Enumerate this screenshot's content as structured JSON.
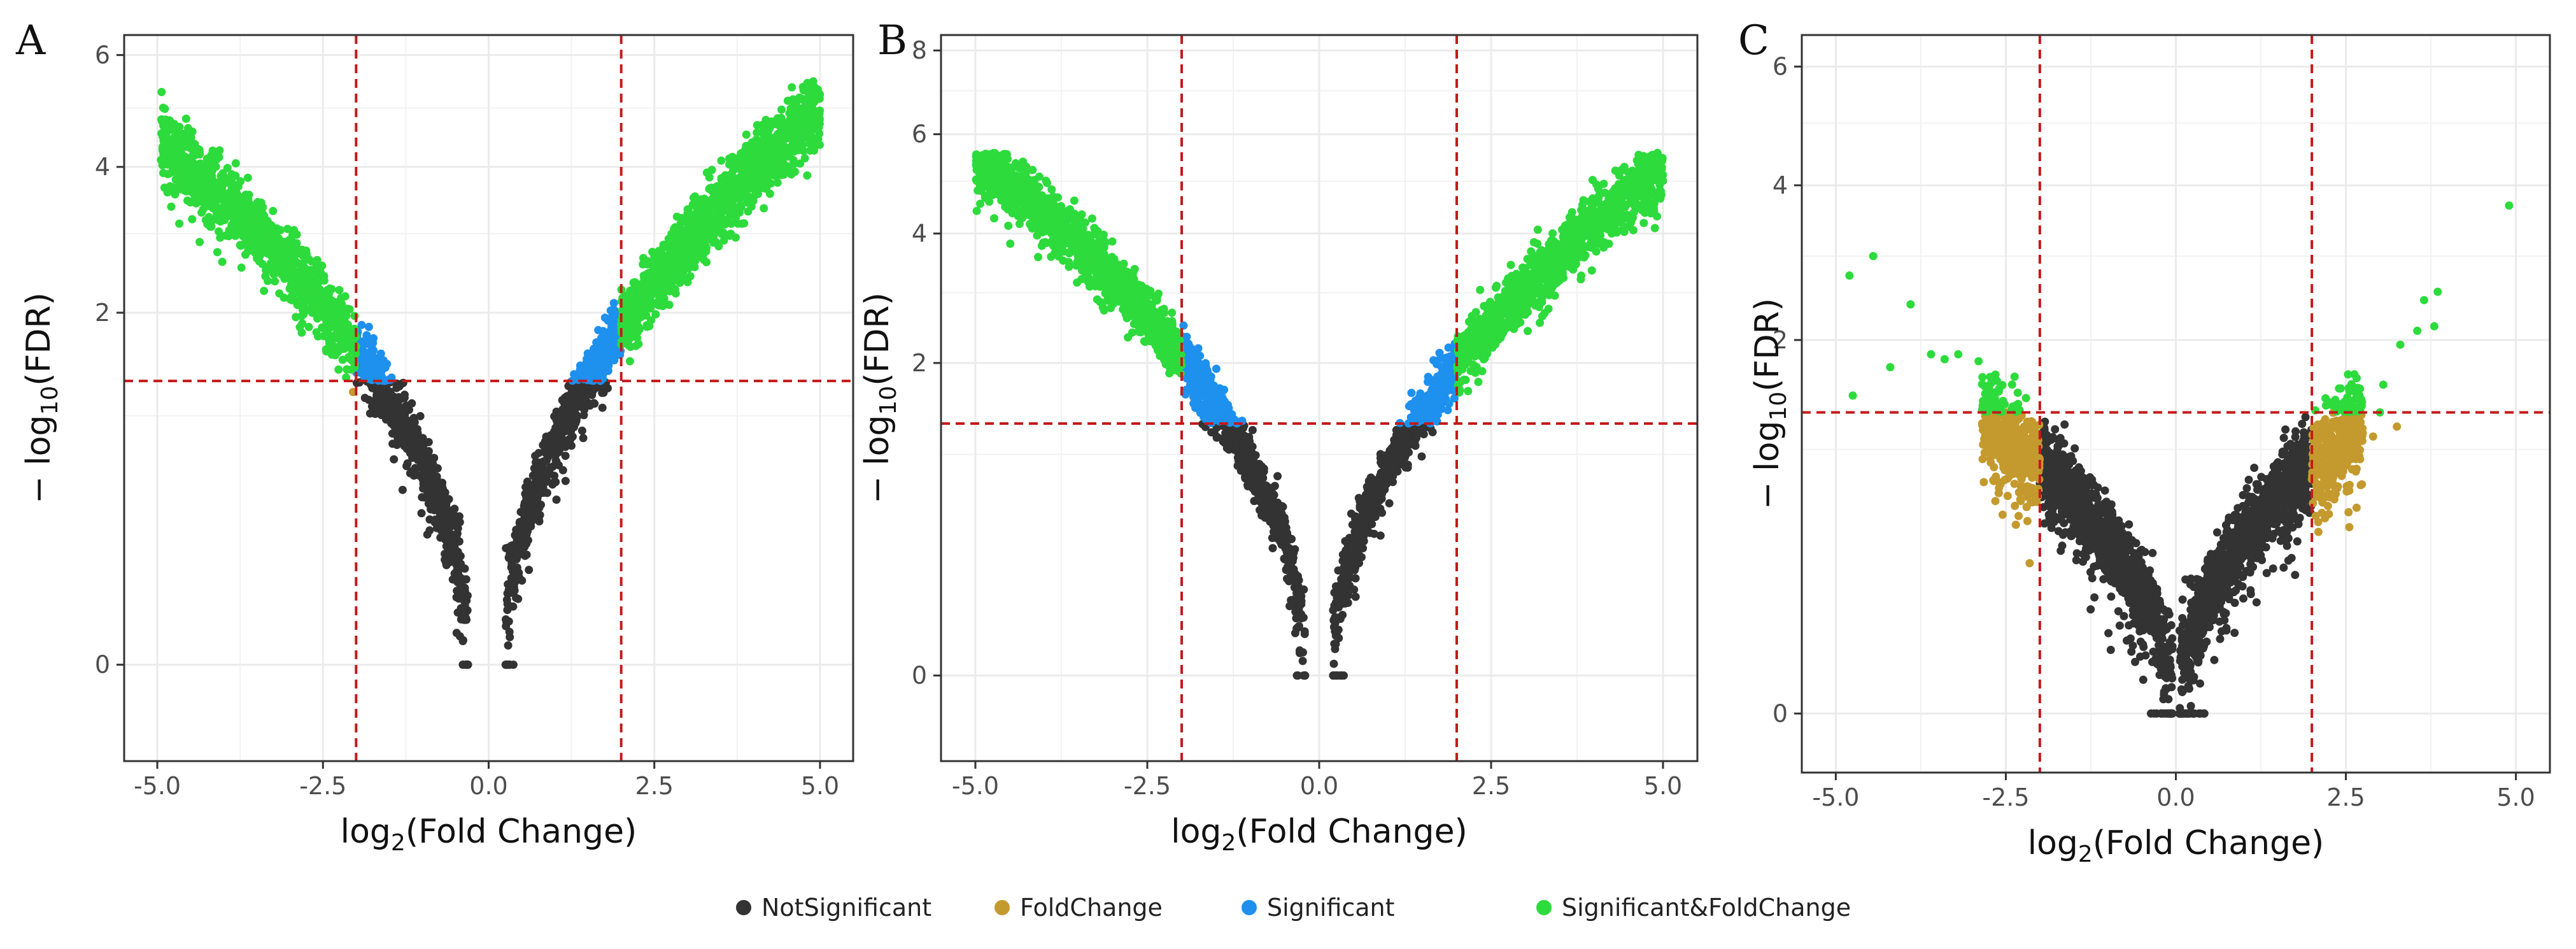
{
  "figure": {
    "legend": {
      "position": "bottom-center",
      "entries": [
        {
          "label": "NotSignificant",
          "color": "#333333"
        },
        {
          "label": "FoldChange",
          "color": "#C49A2E"
        },
        {
          "label": "Significant",
          "color": "#1E90EE"
        },
        {
          "label": "Significant&FoldChange",
          "color": "#2DDB3C"
        }
      ]
    },
    "colors": {
      "NotSignificant": "#333333",
      "FoldChange": "#C49A2E",
      "Significant": "#1E90EE",
      "Significant&FoldChange": "#2DDB3C",
      "threshold_line": "#C41A1A",
      "panel_background": "#FFFFFF",
      "grid": "#EBEBEB",
      "frame": "#333333"
    }
  },
  "chart_data": [
    {
      "panel": "A",
      "type": "scatter",
      "title": "",
      "xlabel": "log2(Fold Change)",
      "ylabel": "-log10(FDR)",
      "xlim": [
        -5.5,
        5.5
      ],
      "ylim": [
        -0.15,
        6.4
      ],
      "y_scale": "sqrt",
      "xticks": [
        -5.0,
        -2.5,
        0.0,
        2.5,
        5.0
      ],
      "xtick_labels": [
        "-5.0",
        "-2.5",
        "0.0",
        "2.5",
        "5.0"
      ],
      "yticks": [
        0,
        2,
        4,
        6
      ],
      "ytick_labels": [
        "0",
        "2",
        "4",
        "6"
      ],
      "thresholds": {
        "logfc_left": -2,
        "logfc_right": 2,
        "fdr": 1.3
      },
      "grid": true,
      "cloud": {
        "spread_left": 1.45,
        "slope_left": 0.95,
        "range_left": [
          0.3,
          4.95
        ],
        "spread_right": 1.55,
        "slope_right": 1.05,
        "range_right": [
          0.25,
          5.0
        ],
        "y_cap": 5.5,
        "n_left": 1700,
        "n_right": 1900
      }
    },
    {
      "panel": "B",
      "type": "scatter",
      "title": "",
      "xlabel": "log2(Fold Change)",
      "ylabel": "-log10(FDR)",
      "xlim": [
        -5.5,
        5.5
      ],
      "ylim": [
        -0.15,
        8.4
      ],
      "y_scale": "sqrt",
      "xticks": [
        -5.0,
        -2.5,
        0.0,
        2.5,
        5.0
      ],
      "xtick_labels": [
        "-5.0",
        "-2.5",
        "0.0",
        "2.5",
        "5.0"
      ],
      "yticks": [
        0,
        2,
        4,
        6,
        8
      ],
      "ytick_labels": [
        "0",
        "2",
        "4",
        "6",
        "8"
      ],
      "thresholds": {
        "logfc_left": -2,
        "logfc_right": 2,
        "fdr": 1.3
      },
      "grid": true,
      "cloud": {
        "spread_left": 1.6,
        "slope_left": 1.15,
        "range_left": [
          0.2,
          5.0
        ],
        "spread_right": 1.5,
        "slope_right": 1.1,
        "range_right": [
          0.2,
          5.0
        ],
        "y_cap": 5.6,
        "n_left": 1900,
        "n_right": 1900
      }
    },
    {
      "panel": "C",
      "type": "scatter",
      "title": "",
      "xlabel": "log2(Fold Change)",
      "ylabel": "-log10(FDR)",
      "xlim": [
        -5.5,
        5.5
      ],
      "ylim": [
        -0.05,
        6.6
      ],
      "y_scale": "sqrt",
      "xticks": [
        -5.0,
        -2.5,
        0.0,
        2.5,
        5.0
      ],
      "xtick_labels": [
        "-5.0",
        "-2.5",
        "0.0",
        "2.5",
        "5.0"
      ],
      "yticks": [
        0,
        2,
        4,
        6
      ],
      "ytick_labels": [
        "0",
        "2",
        "4",
        "6"
      ],
      "thresholds": {
        "logfc_left": -2,
        "logfc_right": 2,
        "fdr": 1.3
      },
      "grid": true,
      "cloud": {
        "spread_left": 0.55,
        "slope_left": 0.45,
        "range_left": [
          0.05,
          2.85
        ],
        "spread_right": 0.55,
        "slope_right": 0.45,
        "range_right": [
          0.05,
          2.75
        ],
        "y_cap": 1.7,
        "n_left": 1500,
        "n_right": 1500
      },
      "extra_points": [
        {
          "x": -4.8,
          "y": 2.75
        },
        {
          "x": -4.45,
          "y": 3.0
        },
        {
          "x": -3.9,
          "y": 2.4
        },
        {
          "x": -3.6,
          "y": 1.85
        },
        {
          "x": -3.4,
          "y": 1.8
        },
        {
          "x": -3.2,
          "y": 1.85
        },
        {
          "x": -2.9,
          "y": 1.78
        },
        {
          "x": -2.4,
          "y": 1.35
        },
        {
          "x": -4.2,
          "y": 1.72
        },
        {
          "x": -4.75,
          "y": 1.45
        },
        {
          "x": 2.7,
          "y": 1.45
        },
        {
          "x": 3.05,
          "y": 1.55
        },
        {
          "x": 3.3,
          "y": 1.95
        },
        {
          "x": 3.55,
          "y": 2.1
        },
        {
          "x": 3.65,
          "y": 2.45
        },
        {
          "x": 3.85,
          "y": 2.55
        },
        {
          "x": 3.8,
          "y": 2.15
        },
        {
          "x": 4.9,
          "y": 3.7
        },
        {
          "x": 3.0,
          "y": 1.3
        },
        {
          "x": 3.25,
          "y": 1.18
        },
        {
          "x": 2.9,
          "y": 1.1
        },
        {
          "x": -2.7,
          "y": 1.28
        }
      ]
    }
  ]
}
